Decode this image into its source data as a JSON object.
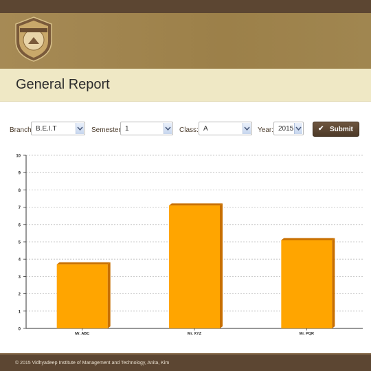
{
  "page": {
    "title": "General Report"
  },
  "filters": {
    "branch": {
      "label": "Branch:",
      "value": "B.E.I.T"
    },
    "semester": {
      "label": "Semester:",
      "value": "1"
    },
    "class": {
      "label": "Class:",
      "value": "A"
    },
    "year": {
      "label": "Year:",
      "value": "2015"
    },
    "submit_label": "Submit"
  },
  "chart_data": {
    "type": "bar",
    "categories": [
      "Mr. ABC",
      "Mr. XYZ",
      "Mr. PQR"
    ],
    "values": [
      3.7,
      7.1,
      5.1
    ],
    "title": "",
    "xlabel": "",
    "ylabel": "",
    "ylim": [
      0,
      10
    ],
    "yticks": [
      "0",
      "1",
      "2",
      "3",
      "4",
      "5",
      "6",
      "7",
      "8",
      "9",
      "10"
    ],
    "grid": true,
    "bar_color": "#ffa500",
    "bar_shade_color": "#c86f00"
  },
  "footer": {
    "text": "© 2015 Vidhyadeep Institute of Management and Technology, Anita, Kim"
  },
  "colors": {
    "header": "#5c4632",
    "banner": "#a08650",
    "titlebar": "#efe8c5"
  }
}
